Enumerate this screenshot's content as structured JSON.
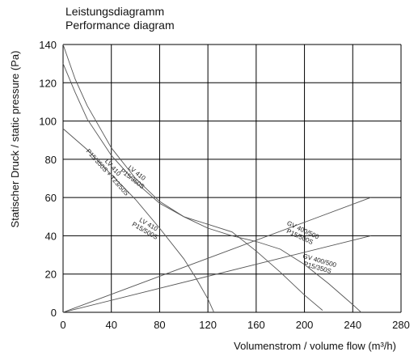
{
  "chart_data": {
    "type": "line",
    "title": "Leistungsdiagramm",
    "subtitle": "Performance diagram",
    "xlabel": "Volumenstrom / volume flow (m³/h)",
    "ylabel": "Statischer Druck / static pressure (Pa)",
    "xlim": [
      0,
      280
    ],
    "ylim": [
      0,
      140
    ],
    "xticks": [
      0,
      40,
      80,
      120,
      160,
      200,
      240,
      280
    ],
    "yticks": [
      0,
      20,
      40,
      60,
      80,
      100,
      120,
      140
    ],
    "grid": true,
    "series": [
      {
        "name": "LV 410 P15/350S + T23/50S",
        "label_lines": [
          "LV 410",
          "P15/350S + T23/50S"
        ],
        "label_at": [
          40,
          75
        ],
        "label_angle": 48,
        "x": [
          0,
          20,
          40,
          60,
          80,
          100,
          110,
          120,
          125
        ],
        "y": [
          96,
          85,
          72,
          59,
          44,
          28,
          18,
          7,
          0
        ]
      },
      {
        "name": "LV 410 P15/350S",
        "label_lines": [
          "LV 410",
          "P15/350S"
        ],
        "label_at": [
          60,
          72
        ],
        "label_angle": 38,
        "x": [
          0,
          10,
          20,
          40,
          60,
          80,
          100,
          120,
          140,
          160,
          180,
          200,
          215
        ],
        "y": [
          130,
          115,
          101,
          82,
          68,
          57,
          50,
          46,
          42,
          32,
          21,
          9,
          1
        ]
      },
      {
        "name": "LV 410 P15/500S",
        "label_lines": [
          "LV 410",
          "P15/500S"
        ],
        "label_at": [
          70,
          45
        ],
        "label_angle": 30,
        "x": [
          0,
          10,
          20,
          40,
          60,
          80,
          100,
          120,
          140,
          160,
          180,
          200,
          220,
          240,
          247
        ],
        "y": [
          140,
          122,
          108,
          86,
          70,
          58,
          50,
          44,
          40,
          37,
          33,
          25,
          15,
          4,
          0
        ]
      },
      {
        "name": "GV 400/500 P15/500S",
        "label_lines": [
          "GV 400/500",
          "P15/500S"
        ],
        "label_at": [
          198,
          42
        ],
        "label_angle": 25,
        "x": [
          0,
          255
        ],
        "y": [
          0,
          60
        ]
      },
      {
        "name": "GV 400/500 P15/350S",
        "label_lines": [
          "GV 400/500",
          "P15/350S"
        ],
        "label_at": [
          212,
          26
        ],
        "label_angle": 16,
        "x": [
          0,
          255
        ],
        "y": [
          0,
          40
        ]
      }
    ]
  }
}
